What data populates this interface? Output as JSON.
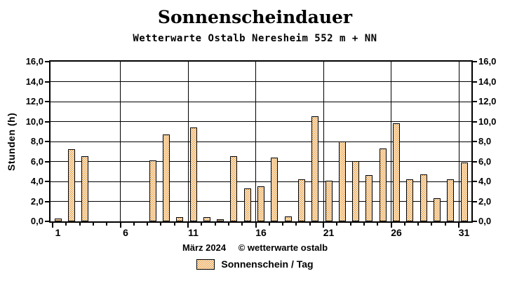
{
  "title": "Sonnenscheindauer",
  "subtitle": "Wetterwarte Ostalb Neresheim 552 m + NN",
  "footer": {
    "month": "März 2024",
    "copyright": "© wetterwarte ostalb"
  },
  "legend": {
    "label": "Sonnenschein / Tag"
  },
  "colors": {
    "bar_fill": "#ea9a34",
    "line": "#000000",
    "background": "#ffffff"
  },
  "chart_data": {
    "type": "bar",
    "title": "Sonnenscheindauer",
    "subtitle": "Wetterwarte Ostalb Neresheim 552 m + NN",
    "series_name": "Sonnenschein / Tag",
    "xlabel": "März 2024",
    "ylabel": "Stunden (h)",
    "ylim": [
      0,
      16
    ],
    "ytick_step": 2,
    "ytick_labels": [
      "0,0",
      "2,0",
      "4,0",
      "6,0",
      "8,0",
      "10,0",
      "12,0",
      "14,0",
      "16,0"
    ],
    "xtick_days": [
      1,
      6,
      11,
      16,
      21,
      26,
      31
    ],
    "xtick_labels": [
      "1",
      "6",
      "11",
      "16",
      "21",
      "26",
      "31"
    ],
    "grid": true,
    "legend_position": "bottom",
    "categories": [
      1,
      2,
      3,
      4,
      5,
      6,
      7,
      8,
      9,
      10,
      11,
      12,
      13,
      14,
      15,
      16,
      17,
      18,
      19,
      20,
      21,
      22,
      23,
      24,
      25,
      26,
      27,
      28,
      29,
      30,
      31
    ],
    "values": [
      0.3,
      7.2,
      6.5,
      0,
      0,
      0,
      0,
      6.1,
      8.7,
      0.4,
      9.4,
      0.4,
      0.2,
      6.5,
      3.3,
      3.5,
      6.4,
      0.5,
      4.2,
      10.5,
      4.1,
      8.0,
      6.0,
      4.6,
      7.3,
      9.8,
      4.2,
      4.7,
      2.3,
      4.2,
      5.9
    ]
  }
}
